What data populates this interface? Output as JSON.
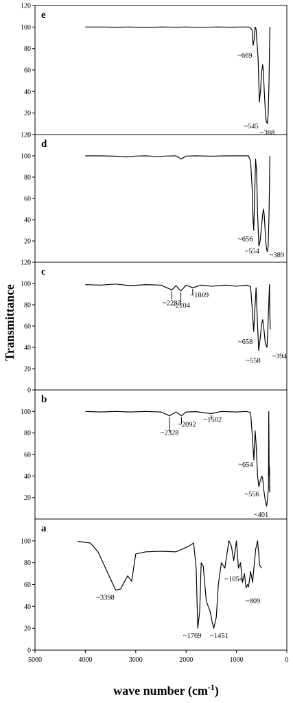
{
  "chart_data": {
    "type": "line",
    "ylabel": "Transmittance",
    "xlabel": "wave number (cm",
    "xlabel_sup": "-1",
    "xlabel_close": ")",
    "x_axis": {
      "range": [
        5000,
        0
      ],
      "reversed": true,
      "ticks": [
        "5000",
        "4000",
        "3000",
        "2000",
        "1000",
        "0"
      ]
    },
    "grid": false,
    "legend": "none",
    "line_color": "#000000",
    "panels": [
      {
        "label": "e",
        "ylim": [
          0,
          120
        ],
        "yticks": [
          "0",
          "20",
          "40",
          "60",
          "80",
          "100",
          "120"
        ],
        "series": {
          "x": [
            4000,
            3700,
            3400,
            3100,
            2800,
            2500,
            2200,
            2000,
            1700,
            1400,
            1100,
            900,
            760,
            720,
            690,
            669,
            650,
            630,
            610,
            570,
            545,
            520,
            500,
            480,
            465,
            450,
            430,
            410,
            388,
            370,
            355,
            345,
            338,
            335
          ],
          "y": [
            100,
            100,
            99.8,
            100,
            99.5,
            100,
            99.8,
            100,
            99.7,
            100,
            99.8,
            100,
            100,
            99,
            97,
            83,
            88,
            100,
            98,
            70,
            30,
            42,
            58,
            65,
            58,
            42,
            25,
            13,
            10,
            18,
            45,
            75,
            95,
            100
          ]
        },
        "annotations": [
          {
            "text": "~669",
            "x": 669,
            "y": 83
          },
          {
            "text": "~545",
            "x": 545,
            "y": 30
          },
          {
            "text": "~388",
            "x": 388,
            "y": 10
          }
        ]
      },
      {
        "label": "d",
        "ylim": [
          0,
          120
        ],
        "yticks": [
          "0",
          "20",
          "40",
          "60",
          "80",
          "100",
          "120"
        ],
        "series": {
          "x": [
            4000,
            3700,
            3400,
            3200,
            3000,
            2800,
            2600,
            2400,
            2200,
            2100,
            2000,
            1800,
            1500,
            1200,
            900,
            760,
            720,
            690,
            670,
            656,
            640,
            620,
            600,
            580,
            554,
            530,
            500,
            480,
            465,
            450,
            430,
            410,
            389,
            370,
            355,
            345,
            338,
            335
          ],
          "y": [
            100,
            100,
            99.7,
            99,
            99.8,
            100,
            99.5,
            99.8,
            100,
            97,
            99.8,
            100,
            99.7,
            100,
            100,
            100,
            95,
            70,
            40,
            30,
            60,
            97,
            85,
            45,
            15,
            20,
            35,
            45,
            50,
            45,
            30,
            15,
            10,
            15,
            40,
            70,
            95,
            100
          ]
        },
        "annotations": [
          {
            "text": "~656",
            "x": 656,
            "y": 30
          },
          {
            "text": "~554",
            "x": 554,
            "y": 15
          },
          {
            "text": "~389",
            "x": 389,
            "y": 10
          }
        ]
      },
      {
        "label": "c",
        "ylim": [
          0,
          120
        ],
        "yticks": [
          "0",
          "20",
          "40",
          "60",
          "80",
          "100",
          "120"
        ],
        "series": {
          "x": [
            4000,
            3700,
            3400,
            3100,
            2800,
            2500,
            2283,
            2200,
            2104,
            2000,
            1869,
            1700,
            1500,
            1200,
            1000,
            800,
            720,
            690,
            658,
            630,
            610,
            580,
            558,
            530,
            500,
            480,
            450,
            430,
            410,
            394,
            375,
            355,
            345,
            338,
            330
          ],
          "y": [
            99,
            98.5,
            99.5,
            98,
            99,
            98.5,
            94,
            98,
            93,
            98.5,
            96,
            98.5,
            97.5,
            98.5,
            97.5,
            98.5,
            97,
            78,
            55,
            80,
            96,
            60,
            37,
            48,
            62,
            66,
            55,
            45,
            42,
            40,
            60,
            85,
            99,
            75,
            57
          ]
        },
        "annotations": [
          {
            "text": "~2283",
            "x": 2283,
            "y": 94
          },
          {
            "text": "~2104",
            "x": 2104,
            "y": 93
          },
          {
            "text": "~1869",
            "x": 1869,
            "y": 96
          },
          {
            "text": "~658",
            "x": 658,
            "y": 55
          },
          {
            "text": "~558",
            "x": 558,
            "y": 37
          },
          {
            "text": "~394",
            "x": 394,
            "y": 40
          }
        ]
      },
      {
        "label": "b",
        "ylim": [
          0,
          120
        ],
        "yticks": [
          "20",
          "40",
          "60",
          "80",
          "100"
        ],
        "series": {
          "x": [
            4000,
            3700,
            3400,
            3100,
            2800,
            2500,
            2328,
            2200,
            2092,
            2000,
            1800,
            1502,
            1300,
            1000,
            800,
            720,
            690,
            654,
            630,
            610,
            580,
            556,
            530,
            500,
            480,
            460,
            430,
            401,
            380,
            365,
            358,
            350,
            345,
            340,
            335
          ],
          "y": [
            100,
            99.5,
            100,
            99.5,
            100,
            99.5,
            96,
            99.5,
            96,
            99.5,
            99.8,
            98,
            100,
            99.5,
            100,
            99,
            80,
            55,
            82,
            70,
            40,
            30,
            35,
            40,
            38,
            28,
            18,
            12,
            20,
            30,
            100,
            40,
            48,
            25,
            30
          ]
        },
        "annotations": [
          {
            "text": "~2328",
            "x": 2328,
            "y": 96
          },
          {
            "text": "~2092",
            "x": 2092,
            "y": 96
          },
          {
            "text": "~1502",
            "x": 1502,
            "y": 98
          },
          {
            "text": "~654",
            "x": 654,
            "y": 55
          },
          {
            "text": "~556",
            "x": 556,
            "y": 30
          },
          {
            "text": "~401",
            "x": 401,
            "y": 12
          }
        ]
      },
      {
        "label": "a",
        "ylim": [
          0,
          120
        ],
        "yticks": [
          "0",
          "20",
          "40",
          "60",
          "80",
          "100"
        ],
        "series": {
          "x": [
            4150,
            3900,
            3750,
            3600,
            3500,
            3398,
            3300,
            3220,
            3160,
            3080,
            3000,
            2800,
            2500,
            2200,
            1950,
            1850,
            1800,
            1769,
            1730,
            1700,
            1660,
            1600,
            1520,
            1480,
            1451,
            1400,
            1360,
            1300,
            1230,
            1150,
            1100,
            1054,
            1000,
            960,
            920,
            880,
            840,
            809,
            780,
            760,
            720,
            680,
            620,
            580,
            540,
            500
          ],
          "y": [
            99.5,
            98,
            90,
            75,
            65,
            55,
            56,
            63,
            68,
            63,
            88,
            90,
            90.5,
            90,
            95,
            98,
            75,
            20,
            35,
            80,
            77,
            45,
            35,
            25,
            20,
            30,
            60,
            80,
            75,
            100,
            95,
            82,
            100,
            75,
            80,
            62,
            70,
            57,
            60,
            58,
            72,
            62,
            92,
            100,
            78,
            75
          ]
        },
        "annotations": [
          {
            "text": "~3398",
            "x": 3398,
            "y": 55
          },
          {
            "text": "~1769",
            "x": 1769,
            "y": 20
          },
          {
            "text": "~1451",
            "x": 1451,
            "y": 20
          },
          {
            "text": "~1054",
            "x": 1054,
            "y": 82
          },
          {
            "text": "~809",
            "x": 809,
            "y": 57
          }
        ]
      }
    ]
  }
}
